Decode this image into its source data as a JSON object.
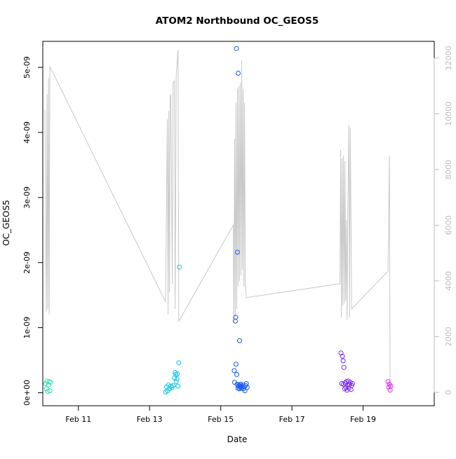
{
  "chart_data": {
    "type": "scatter",
    "title": "ATOM2 Northbound OC_GEOS5",
    "xlabel": "Date",
    "ylabel": "OC_GEOS5",
    "x_ticks": [
      "Feb 11",
      "Feb 13",
      "Feb 15",
      "Feb 17",
      "Feb 19"
    ],
    "y_ticks": [
      "0e+00",
      "1e-09",
      "2e-09",
      "3e-09",
      "4e-09",
      "5e-09"
    ],
    "y2_ticks": [
      "0",
      "2000",
      "4000",
      "6000",
      "8000",
      "10000",
      "12000"
    ],
    "xlim": [
      10.0,
      21.0
    ],
    "ylim": [
      -2e-10,
      5.4e-09
    ],
    "y2lim": [
      -480,
      12600
    ],
    "grid": false,
    "legend": "none",
    "line_color": "#c8c8c8",
    "series": [
      {
        "color": "#2fe0b6",
        "points": [
          [
            10.08,
            1.4e-10
          ],
          [
            10.1,
            6e-11
          ],
          [
            10.12,
            1.8e-10
          ],
          [
            10.14,
            2e-11
          ],
          [
            10.16,
            1.2e-10
          ],
          [
            10.18,
            1.7e-10
          ],
          [
            10.2,
            3e-11
          ],
          [
            10.22,
            1.6e-10
          ]
        ]
      },
      {
        "color": "#14c6e8",
        "points": [
          [
            13.45,
            1e-11
          ],
          [
            13.48,
            9e-11
          ],
          [
            13.5,
            3e-11
          ],
          [
            13.53,
            1.2e-10
          ],
          [
            13.56,
            6e-11
          ],
          [
            13.6,
            1e-10
          ],
          [
            13.63,
            8e-11
          ],
          [
            13.66,
            1.1e-10
          ],
          [
            13.7,
            2.3e-10
          ],
          [
            13.72,
            3.1e-10
          ],
          [
            13.74,
            2.8e-10
          ],
          [
            13.75,
            1.7e-10
          ],
          [
            13.77,
            2.1e-10
          ],
          [
            13.78,
            2.9e-10
          ],
          [
            13.8,
            1e-10
          ],
          [
            13.82,
            4.6e-10
          ],
          [
            13.84,
            1.93e-09
          ]
        ]
      },
      {
        "color": "#1a56f0",
        "points": [
          [
            15.38,
            3.4e-10
          ],
          [
            15.39,
            1.6e-10
          ],
          [
            15.41,
            1.1e-09
          ],
          [
            15.42,
            1.16e-09
          ],
          [
            15.43,
            4.4e-10
          ],
          [
            15.44,
            5.29e-09
          ],
          [
            15.45,
            2.8e-10
          ],
          [
            15.46,
            1.3e-10
          ],
          [
            15.47,
            2.16e-09
          ],
          [
            15.48,
            7e-11
          ],
          [
            15.49,
            4.91e-09
          ],
          [
            15.5,
            1e-10
          ],
          [
            15.51,
            1.2e-10
          ],
          [
            15.52,
            6e-11
          ],
          [
            15.53,
            8e-10
          ],
          [
            15.54,
            1.1e-10
          ],
          [
            15.55,
            9e-11
          ],
          [
            15.56,
            1.3e-10
          ],
          [
            15.57,
            7e-11
          ],
          [
            15.58,
            1e-10
          ],
          [
            15.6,
            8e-11
          ],
          [
            15.62,
            1.2e-10
          ],
          [
            15.64,
            6e-11
          ],
          [
            15.66,
            9e-11
          ],
          [
            15.68,
            3e-11
          ],
          [
            15.7,
            1.1e-10
          ],
          [
            15.72,
            1.4e-10
          ],
          [
            15.74,
            8e-11
          ]
        ]
      },
      {
        "color": "#7a28e6",
        "points": [
          [
            18.38,
            6.1e-10
          ],
          [
            18.4,
            1.4e-10
          ],
          [
            18.42,
            5.6e-10
          ],
          [
            18.44,
            4.9e-10
          ],
          [
            18.45,
            1.3e-10
          ],
          [
            18.46,
            3.9e-10
          ],
          [
            18.48,
            6e-11
          ],
          [
            18.5,
            1.5e-10
          ],
          [
            18.52,
            8e-11
          ],
          [
            18.53,
            1.7e-10
          ],
          [
            18.55,
            4e-11
          ],
          [
            18.57,
            1.2e-10
          ],
          [
            18.58,
            1.8e-10
          ],
          [
            18.6,
            7e-11
          ],
          [
            18.62,
            1.3e-10
          ],
          [
            18.64,
            1.6e-10
          ],
          [
            18.66,
            5e-11
          ],
          [
            18.68,
            1.1e-10
          ],
          [
            18.7,
            1.4e-10
          ]
        ]
      },
      {
        "color": "#e22ae8",
        "points": [
          [
            19.7,
            1.7e-10
          ],
          [
            19.72,
            9e-11
          ],
          [
            19.74,
            1.3e-10
          ],
          [
            19.76,
            4e-11
          ],
          [
            19.78,
            1e-10
          ]
        ]
      }
    ],
    "altitude_line": [
      [
        10.06,
        10150
      ],
      [
        10.1,
        2900
      ],
      [
        10.12,
        10700
      ],
      [
        10.14,
        3000
      ],
      [
        10.16,
        11300
      ],
      [
        10.18,
        2800
      ],
      [
        10.2,
        11700
      ],
      [
        13.45,
        3250
      ],
      [
        13.5,
        9800
      ],
      [
        13.52,
        2800
      ],
      [
        13.54,
        10100
      ],
      [
        13.56,
        3600
      ],
      [
        13.58,
        10600
      ],
      [
        13.6,
        10700
      ],
      [
        13.64,
        3900
      ],
      [
        13.66,
        11100
      ],
      [
        13.7,
        11200
      ],
      [
        13.72,
        3000
      ],
      [
        13.75,
        11400
      ],
      [
        13.8,
        12300
      ],
      [
        13.82,
        2550
      ],
      [
        15.35,
        6000
      ],
      [
        15.37,
        2500
      ],
      [
        15.39,
        9100
      ],
      [
        15.41,
        2700
      ],
      [
        15.43,
        10400
      ],
      [
        15.45,
        3000
      ],
      [
        15.47,
        10900
      ],
      [
        15.49,
        3800
      ],
      [
        15.51,
        11000
      ],
      [
        15.53,
        4000
      ],
      [
        15.55,
        11100
      ],
      [
        15.57,
        4200
      ],
      [
        15.59,
        11900
      ],
      [
        15.61,
        4400
      ],
      [
        15.63,
        10900
      ],
      [
        15.65,
        3800
      ],
      [
        15.67,
        10400
      ],
      [
        15.69,
        3900
      ],
      [
        15.72,
        3400
      ],
      [
        18.35,
        3900
      ],
      [
        18.37,
        8700
      ],
      [
        18.39,
        2700
      ],
      [
        18.41,
        8400
      ],
      [
        18.43,
        3100
      ],
      [
        18.45,
        8500
      ],
      [
        18.47,
        3200
      ],
      [
        18.49,
        8300
      ],
      [
        18.51,
        3300
      ],
      [
        18.53,
        6200
      ],
      [
        18.55,
        2600
      ],
      [
        18.57,
        6300
      ],
      [
        18.6,
        9600
      ],
      [
        18.62,
        2700
      ],
      [
        18.64,
        9500
      ],
      [
        18.68,
        3000
      ],
      [
        19.7,
        4350
      ],
      [
        19.74,
        8500
      ],
      [
        19.76,
        0
      ]
    ]
  }
}
